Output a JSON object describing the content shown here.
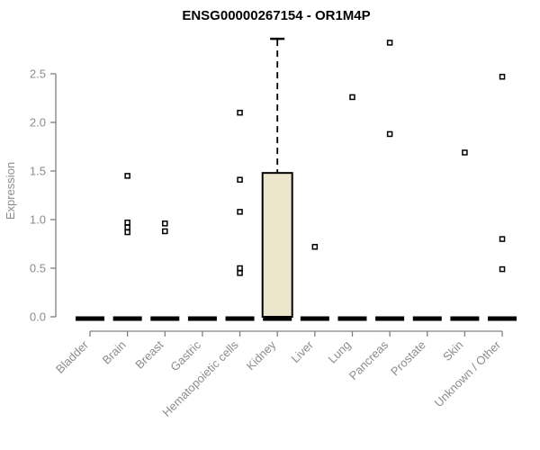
{
  "chart_data": {
    "type": "boxplot",
    "title": "ENSG00000267154 - OR1M4P",
    "ylabel": "Expression",
    "ylim": [
      0,
      2.86
    ],
    "yticks": [
      0,
      0.5,
      1,
      1.5,
      2,
      2.5
    ],
    "grid": false,
    "legend": "none",
    "categories": [
      "Bladder",
      "Brain",
      "Breast",
      "Gastric",
      "Hematopoietic cells",
      "Kidney",
      "Liver",
      "Lung",
      "Pancreas",
      "Prostate",
      "Skin",
      "Unknown / Other"
    ],
    "boxplots": [
      {
        "category": "Bladder",
        "median": 0,
        "q1": 0,
        "q3": 0,
        "outliers": []
      },
      {
        "category": "Brain",
        "median": 0,
        "q1": 0,
        "q3": 0,
        "outliers": [
          1.45,
          0.97,
          0.92,
          0.87
        ]
      },
      {
        "category": "Breast",
        "median": 0,
        "q1": 0,
        "q3": 0,
        "outliers": [
          0.96,
          0.88
        ]
      },
      {
        "category": "Gastric",
        "median": 0,
        "q1": 0,
        "q3": 0,
        "outliers": []
      },
      {
        "category": "Hematopoietic cells",
        "median": 0,
        "q1": 0,
        "q3": 0,
        "outliers": [
          2.1,
          1.41,
          1.08,
          0.5,
          0.45
        ]
      },
      {
        "category": "Kidney",
        "median": 0,
        "q1": 0,
        "q3": 1.48,
        "whisker_high": 2.86,
        "outliers": []
      },
      {
        "category": "Liver",
        "median": 0,
        "q1": 0,
        "q3": 0,
        "outliers": [
          0.72
        ]
      },
      {
        "category": "Lung",
        "median": 0,
        "q1": 0,
        "q3": 0,
        "outliers": [
          2.26
        ]
      },
      {
        "category": "Pancreas",
        "median": 0,
        "q1": 0,
        "q3": 0,
        "outliers": [
          2.82,
          1.88
        ]
      },
      {
        "category": "Prostate",
        "median": 0,
        "q1": 0,
        "q3": 0,
        "outliers": []
      },
      {
        "category": "Skin",
        "median": 0,
        "q1": 0,
        "q3": 0,
        "outliers": [
          1.69
        ]
      },
      {
        "category": "Unknown / Other",
        "median": 0,
        "q1": 0,
        "q3": 0,
        "outliers": [
          2.47,
          0.8,
          0.49
        ]
      }
    ],
    "colors": {
      "background": "#FFFFFF",
      "box_fill": "#EBE6CB",
      "box_border": "#000000",
      "median_line": "#000000",
      "whisker": "#000000",
      "outlier_fill": "#FFFFFF",
      "outlier_border": "#000000",
      "axis_line": "#808080",
      "tick_text": "#8C8C8C",
      "title_text": "#000000"
    }
  }
}
